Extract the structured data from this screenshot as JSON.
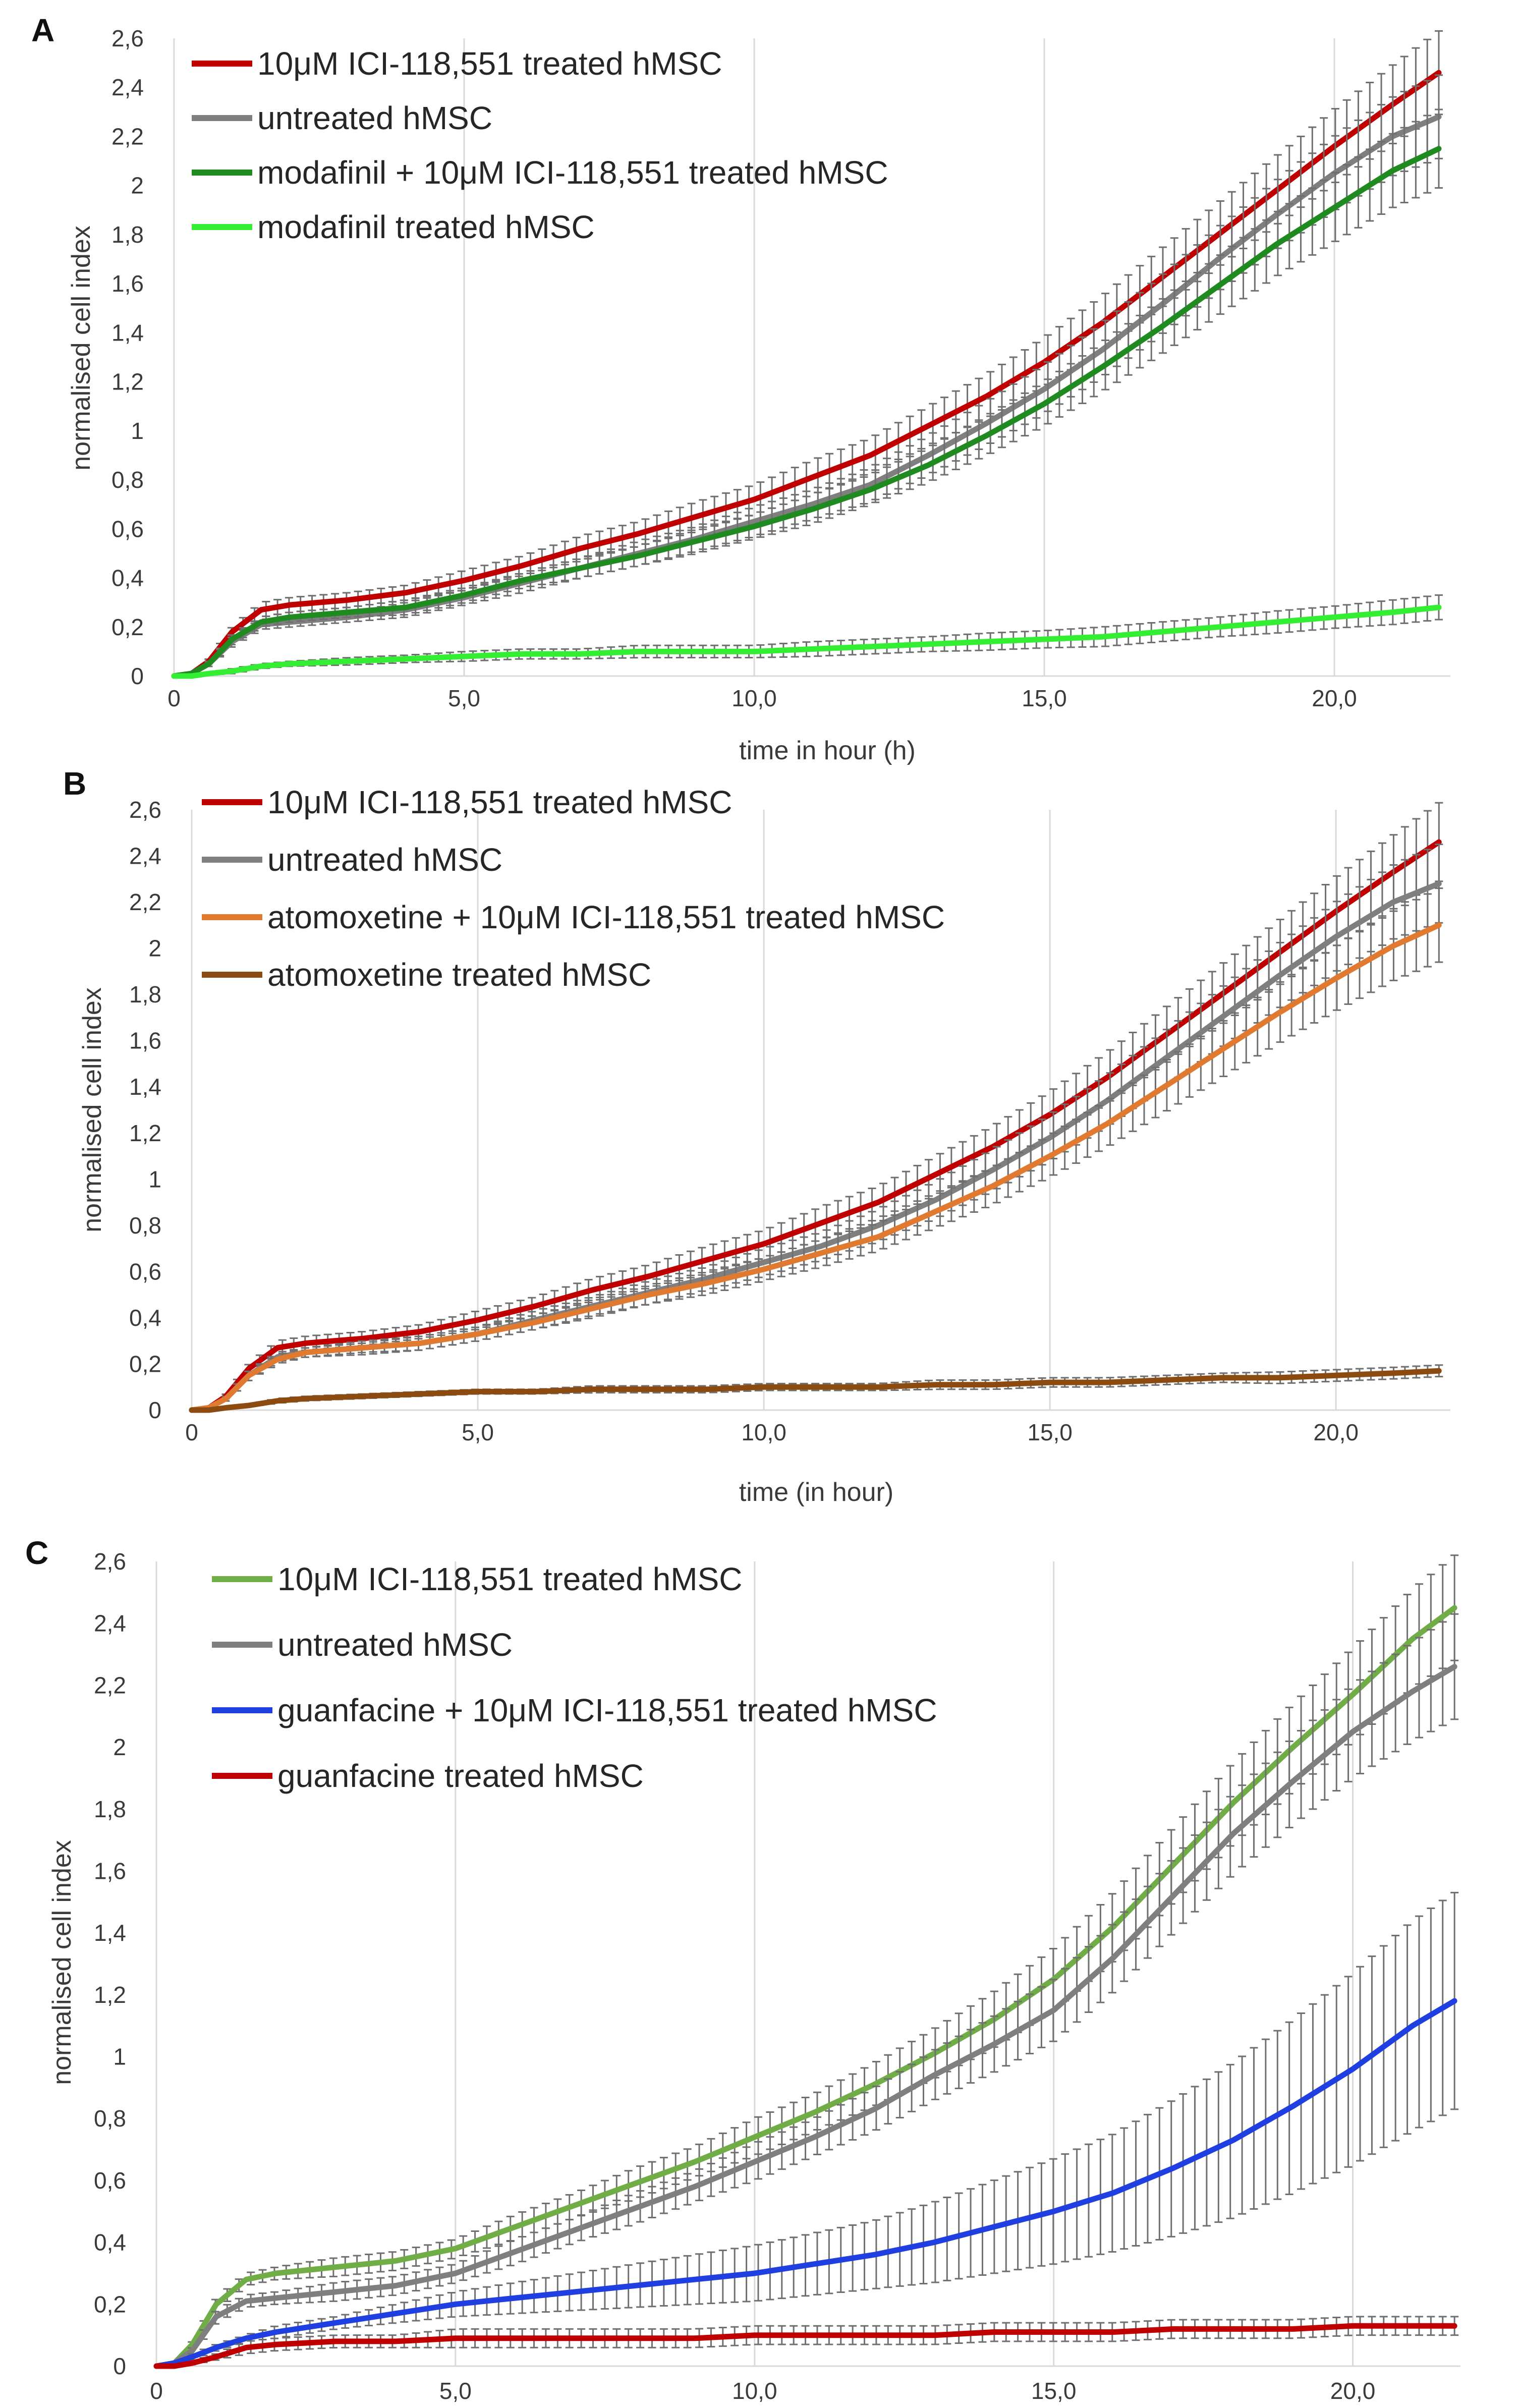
{
  "chart_data": [
    {
      "panel": "A",
      "type": "line",
      "xlabel": "time in hour (h)",
      "ylabel": "normalised cell index",
      "xlim": [
        0,
        22
      ],
      "ylim": [
        0,
        2.6
      ],
      "yticks": [
        0,
        0.2,
        0.4,
        0.6,
        0.8,
        1,
        1.2,
        1.4,
        1.6,
        1.8,
        2,
        2.2,
        2.4,
        2.6
      ],
      "ytick_labels": [
        "0",
        "0,2",
        "0,4",
        "0,6",
        "0,8",
        "1",
        "1,2",
        "1,4",
        "1,6",
        "1,8",
        "2",
        "2,2",
        "2,4",
        "2,6"
      ],
      "xticks": [
        0,
        5,
        10,
        15,
        20
      ],
      "xtick_labels": [
        "0",
        "5,0",
        "10,0",
        "15,0",
        "20,0"
      ],
      "grid": "vertical",
      "x": [
        0,
        0.3,
        0.6,
        1.0,
        1.5,
        2,
        3,
        4,
        5,
        6,
        7,
        8,
        9,
        10,
        11,
        12,
        13,
        14,
        15,
        16,
        17,
        18,
        19,
        20,
        21,
        21.8
      ],
      "series": [
        {
          "name": "10μM ICI-118,551 treated hMSC",
          "color": "#c00000",
          "values": [
            0,
            0.01,
            0.06,
            0.18,
            0.27,
            0.29,
            0.31,
            0.34,
            0.39,
            0.45,
            0.52,
            0.58,
            0.65,
            0.72,
            0.81,
            0.9,
            1.02,
            1.14,
            1.28,
            1.44,
            1.62,
            1.8,
            1.98,
            2.16,
            2.33,
            2.46
          ],
          "error": [
            0,
            0,
            0.01,
            0.02,
            0.03,
            0.03,
            0.03,
            0.03,
            0.04,
            0.04,
            0.05,
            0.05,
            0.06,
            0.06,
            0.07,
            0.07,
            0.08,
            0.09,
            0.1,
            0.11,
            0.12,
            0.13,
            0.14,
            0.15,
            0.16,
            0.17
          ]
        },
        {
          "name": "untreated hMSC",
          "color": "#7f7f7f",
          "values": [
            0,
            0.01,
            0.05,
            0.14,
            0.21,
            0.22,
            0.24,
            0.27,
            0.32,
            0.38,
            0.44,
            0.5,
            0.56,
            0.63,
            0.7,
            0.78,
            0.9,
            1.03,
            1.17,
            1.33,
            1.51,
            1.7,
            1.88,
            2.05,
            2.2,
            2.28
          ],
          "error": [
            0,
            0,
            0.01,
            0.02,
            0.02,
            0.02,
            0.02,
            0.03,
            0.03,
            0.04,
            0.04,
            0.05,
            0.05,
            0.06,
            0.06,
            0.07,
            0.08,
            0.09,
            0.1,
            0.11,
            0.12,
            0.13,
            0.14,
            0.15,
            0.16,
            0.17
          ]
        },
        {
          "name": "modafinil + 10μM ICI-118,551 treated hMSC",
          "color": "#1f8a1f",
          "values": [
            0,
            0.01,
            0.05,
            0.15,
            0.22,
            0.24,
            0.26,
            0.28,
            0.33,
            0.39,
            0.44,
            0.49,
            0.55,
            0.61,
            0.68,
            0.76,
            0.86,
            0.98,
            1.11,
            1.26,
            1.42,
            1.59,
            1.76,
            1.91,
            2.06,
            2.15
          ],
          "error": [
            0,
            0,
            0.01,
            0.02,
            0.02,
            0.02,
            0.02,
            0.03,
            0.03,
            0.03,
            0.04,
            0.04,
            0.05,
            0.05,
            0.06,
            0.06,
            0.07,
            0.08,
            0.09,
            0.1,
            0.11,
            0.12,
            0.13,
            0.14,
            0.15,
            0.16
          ]
        },
        {
          "name": "modafinil treated hMSC",
          "color": "#33ee33",
          "values": [
            0,
            0,
            0.01,
            0.02,
            0.04,
            0.05,
            0.06,
            0.07,
            0.08,
            0.09,
            0.09,
            0.1,
            0.1,
            0.1,
            0.11,
            0.12,
            0.13,
            0.14,
            0.15,
            0.16,
            0.18,
            0.2,
            0.22,
            0.24,
            0.26,
            0.28
          ],
          "error": [
            0,
            0,
            0.005,
            0.01,
            0.01,
            0.01,
            0.015,
            0.015,
            0.02,
            0.02,
            0.02,
            0.025,
            0.025,
            0.025,
            0.03,
            0.03,
            0.03,
            0.035,
            0.035,
            0.04,
            0.04,
            0.04,
            0.045,
            0.045,
            0.05,
            0.05
          ]
        }
      ]
    },
    {
      "panel": "B",
      "type": "line",
      "xlabel": "time (in hour)",
      "ylabel": "normalised cell index",
      "xlim": [
        0,
        22
      ],
      "ylim": [
        0,
        2.6
      ],
      "yticks": [
        0,
        0.2,
        0.4,
        0.6,
        0.8,
        1,
        1.2,
        1.4,
        1.6,
        1.8,
        2,
        2.2,
        2.4,
        2.6
      ],
      "ytick_labels": [
        "0",
        "0,2",
        "0,4",
        "0,6",
        "0,8",
        "1",
        "1,2",
        "1,4",
        "1,6",
        "1,8",
        "2",
        "2,2",
        "2,4",
        "2,6"
      ],
      "xticks": [
        0,
        5,
        10,
        15,
        20
      ],
      "xtick_labels": [
        "0",
        "5,0",
        "10,0",
        "15,0",
        "20,0"
      ],
      "grid": "vertical",
      "x": [
        0,
        0.3,
        0.6,
        1.0,
        1.5,
        2,
        3,
        4,
        5,
        6,
        7,
        8,
        9,
        10,
        11,
        12,
        13,
        14,
        15,
        16,
        17,
        18,
        19,
        20,
        21,
        21.8
      ],
      "series": [
        {
          "name": "10μM ICI-118,551 treated hMSC",
          "color": "#c00000",
          "values": [
            0,
            0.01,
            0.06,
            0.18,
            0.27,
            0.29,
            0.31,
            0.34,
            0.39,
            0.45,
            0.52,
            0.58,
            0.65,
            0.72,
            0.81,
            0.9,
            1.02,
            1.14,
            1.28,
            1.44,
            1.62,
            1.8,
            1.98,
            2.16,
            2.33,
            2.46
          ],
          "error": [
            0,
            0,
            0.01,
            0.02,
            0.03,
            0.03,
            0.03,
            0.03,
            0.04,
            0.04,
            0.05,
            0.05,
            0.06,
            0.06,
            0.07,
            0.07,
            0.08,
            0.09,
            0.1,
            0.11,
            0.12,
            0.13,
            0.14,
            0.15,
            0.16,
            0.17
          ]
        },
        {
          "name": "untreated hMSC",
          "color": "#7f7f7f",
          "values": [
            0,
            0.01,
            0.05,
            0.15,
            0.23,
            0.25,
            0.27,
            0.29,
            0.33,
            0.39,
            0.45,
            0.51,
            0.57,
            0.64,
            0.71,
            0.8,
            0.91,
            1.04,
            1.18,
            1.34,
            1.52,
            1.7,
            1.88,
            2.05,
            2.2,
            2.28
          ],
          "error": [
            0,
            0,
            0.01,
            0.02,
            0.02,
            0.02,
            0.03,
            0.03,
            0.03,
            0.04,
            0.04,
            0.05,
            0.05,
            0.06,
            0.06,
            0.07,
            0.08,
            0.09,
            0.1,
            0.11,
            0.12,
            0.13,
            0.14,
            0.15,
            0.16,
            0.17
          ]
        },
        {
          "name": "atomoxetine + 10μM ICI-118,551 treated hMSC",
          "color": "#e07a30",
          "values": [
            0,
            0.01,
            0.05,
            0.15,
            0.22,
            0.25,
            0.27,
            0.29,
            0.33,
            0.38,
            0.44,
            0.5,
            0.55,
            0.61,
            0.68,
            0.75,
            0.86,
            0.97,
            1.1,
            1.24,
            1.4,
            1.56,
            1.72,
            1.87,
            2.01,
            2.1
          ],
          "error": [
            0,
            0,
            0.01,
            0.02,
            0.02,
            0.02,
            0.02,
            0.03,
            0.03,
            0.03,
            0.04,
            0.04,
            0.05,
            0.05,
            0.06,
            0.06,
            0.07,
            0.08,
            0.09,
            0.1,
            0.11,
            0.12,
            0.13,
            0.14,
            0.15,
            0.16
          ]
        },
        {
          "name": "atomoxetine treated hMSC",
          "color": "#8b4a10",
          "values": [
            0,
            0,
            0.01,
            0.02,
            0.04,
            0.05,
            0.06,
            0.07,
            0.08,
            0.08,
            0.09,
            0.09,
            0.09,
            0.1,
            0.1,
            0.1,
            0.11,
            0.11,
            0.12,
            0.12,
            0.13,
            0.14,
            0.14,
            0.15,
            0.16,
            0.17
          ],
          "error": [
            0,
            0,
            0.005,
            0.005,
            0.01,
            0.01,
            0.01,
            0.01,
            0.01,
            0.01,
            0.015,
            0.015,
            0.015,
            0.015,
            0.015,
            0.015,
            0.02,
            0.02,
            0.02,
            0.02,
            0.02,
            0.02,
            0.025,
            0.025,
            0.025,
            0.025
          ]
        }
      ]
    },
    {
      "panel": "C",
      "type": "line",
      "xlabel": "",
      "ylabel": "normalised cell index",
      "xlim": [
        0,
        21.8
      ],
      "ylim": [
        0,
        2.6
      ],
      "yticks": [
        0,
        0.2,
        0.4,
        0.6,
        0.8,
        1,
        1.2,
        1.4,
        1.6,
        1.8,
        2,
        2.2,
        2.4,
        2.6
      ],
      "ytick_labels": [
        "0",
        "0,2",
        "0,4",
        "0,6",
        "0,8",
        "1",
        "1,2",
        "1,4",
        "1,6",
        "1,8",
        "2",
        "2,2",
        "2,4",
        "2,6"
      ],
      "xticks": [
        0,
        5,
        10,
        15,
        20
      ],
      "xtick_labels": [
        "0",
        "5,0",
        "10,0",
        "15,0",
        "20,0"
      ],
      "grid": "vertical",
      "x": [
        0,
        0.3,
        0.6,
        1.0,
        1.5,
        2,
        3,
        4,
        5,
        6,
        7,
        8,
        9,
        10,
        11,
        12,
        13,
        14,
        15,
        16,
        17,
        18,
        19,
        20,
        21,
        21.7
      ],
      "series": [
        {
          "name": "10μM ICI-118,551 treated hMSC",
          "color": "#70ad47",
          "values": [
            0,
            0.01,
            0.07,
            0.2,
            0.28,
            0.3,
            0.32,
            0.34,
            0.38,
            0.45,
            0.52,
            0.59,
            0.66,
            0.74,
            0.82,
            0.91,
            1.01,
            1.12,
            1.25,
            1.42,
            1.62,
            1.82,
            2.0,
            2.17,
            2.35,
            2.45
          ],
          "error": [
            0,
            0,
            0.01,
            0.02,
            0.02,
            0.02,
            0.03,
            0.03,
            0.03,
            0.04,
            0.04,
            0.05,
            0.05,
            0.06,
            0.06,
            0.07,
            0.08,
            0.09,
            0.1,
            0.11,
            0.12,
            0.13,
            0.14,
            0.15,
            0.16,
            0.17
          ]
        },
        {
          "name": "untreated hMSC",
          "color": "#7f7f7f",
          "values": [
            0,
            0.01,
            0.05,
            0.16,
            0.21,
            0.22,
            0.24,
            0.26,
            0.3,
            0.37,
            0.44,
            0.51,
            0.58,
            0.66,
            0.74,
            0.83,
            0.94,
            1.04,
            1.15,
            1.32,
            1.52,
            1.72,
            1.89,
            2.05,
            2.18,
            2.26
          ],
          "error": [
            0,
            0,
            0.01,
            0.02,
            0.02,
            0.02,
            0.03,
            0.03,
            0.03,
            0.04,
            0.04,
            0.05,
            0.05,
            0.06,
            0.06,
            0.07,
            0.08,
            0.09,
            0.1,
            0.11,
            0.12,
            0.13,
            0.14,
            0.15,
            0.16,
            0.17
          ]
        },
        {
          "name": "guanfacine + 10μM ICI-118,551 treated hMSC",
          "color": "#1f3fe0",
          "values": [
            0,
            0.01,
            0.03,
            0.06,
            0.09,
            0.11,
            0.14,
            0.17,
            0.2,
            0.22,
            0.24,
            0.26,
            0.28,
            0.3,
            0.33,
            0.36,
            0.4,
            0.45,
            0.5,
            0.56,
            0.64,
            0.73,
            0.84,
            0.96,
            1.1,
            1.18
          ],
          "error": [
            0,
            0,
            0.01,
            0.01,
            0.01,
            0.02,
            0.02,
            0.03,
            0.04,
            0.05,
            0.06,
            0.07,
            0.08,
            0.09,
            0.1,
            0.11,
            0.13,
            0.15,
            0.17,
            0.19,
            0.22,
            0.25,
            0.28,
            0.31,
            0.34,
            0.35
          ]
        },
        {
          "name": "guanfacine treated hMSC",
          "color": "#c00000",
          "values": [
            0,
            0,
            0.01,
            0.03,
            0.06,
            0.07,
            0.08,
            0.08,
            0.09,
            0.09,
            0.09,
            0.09,
            0.09,
            0.1,
            0.1,
            0.1,
            0.1,
            0.11,
            0.11,
            0.11,
            0.12,
            0.12,
            0.12,
            0.13,
            0.13,
            0.13
          ],
          "error": [
            0,
            0,
            0.005,
            0.01,
            0.02,
            0.02,
            0.02,
            0.02,
            0.03,
            0.03,
            0.03,
            0.03,
            0.03,
            0.03,
            0.03,
            0.03,
            0.03,
            0.03,
            0.03,
            0.03,
            0.03,
            0.03,
            0.03,
            0.03,
            0.03,
            0.03
          ]
        }
      ]
    }
  ]
}
